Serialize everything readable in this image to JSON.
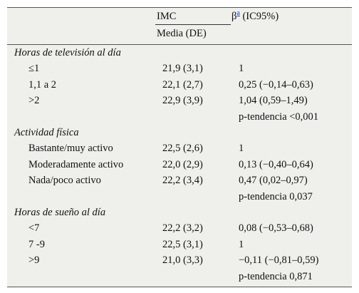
{
  "header": {
    "imc": "IMC",
    "beta_symbol": "β",
    "beta_sup": "a",
    "beta_rest": " (IC95%)",
    "media_de": "Media (DE)"
  },
  "sections": [
    {
      "title": "Horas de televisión al día",
      "rows": [
        {
          "label": "≤1",
          "media": "21,9 (3,1)",
          "beta": "1"
        },
        {
          "label": "1,1 a 2",
          "media": "22,1 (2,7)",
          "beta": "0,25 (−0,14–0,63)"
        },
        {
          "label": ">2",
          "media": "22,9 (3,9)",
          "beta": "1,04 (0,59–1,49)"
        },
        {
          "label": "",
          "media": "",
          "beta": "p-tendencia <0,001"
        }
      ]
    },
    {
      "title": "Actividad física",
      "rows": [
        {
          "label": "Bastante/muy activo",
          "media": "22,5 (2,6)",
          "beta": "1"
        },
        {
          "label": "Moderadamente activo",
          "media": "22,0 (2,9)",
          "beta": "0,13 (−0,40–0,64)"
        },
        {
          "label": "Nada/poco activo",
          "media": "22,2 (3,4)",
          "beta": "0,47 (0,02–0,97)"
        },
        {
          "label": "",
          "media": "",
          "beta": "p-tendencia 0,037"
        }
      ]
    },
    {
      "title": "Horas de sueño al día",
      "rows": [
        {
          "label": "<7",
          "media": "22,2 (3,2)",
          "beta": "0,08 (−0,53–0,68)"
        },
        {
          "label": "7 -9",
          "media": "22,5 (3,1)",
          "beta": "1"
        },
        {
          "label": ">9",
          "media": "21,0 (3,3)",
          "beta": "−0,11 (−0,81–0,59)"
        },
        {
          "label": "",
          "media": "",
          "beta": "p-tendencia 0,871"
        }
      ]
    }
  ]
}
